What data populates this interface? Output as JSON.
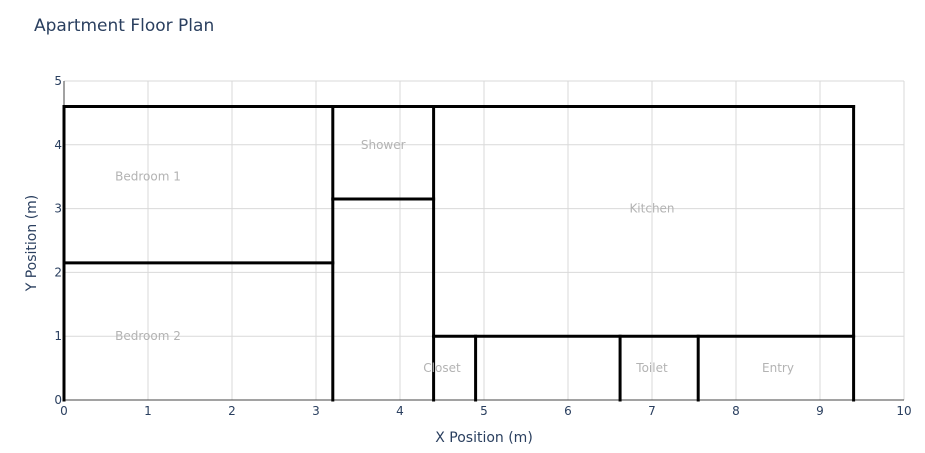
{
  "chart_data": {
    "type": "diagram",
    "title": "Apartment Floor Plan",
    "xlabel": "X Position (m)",
    "ylabel": "Y Position (m)",
    "xlim": [
      0,
      10
    ],
    "ylim": [
      0,
      5
    ],
    "xticks": [
      "0",
      "1",
      "2",
      "3",
      "4",
      "5",
      "6",
      "7",
      "8",
      "9",
      "10"
    ],
    "yticks": [
      "0",
      "1",
      "2",
      "3",
      "4",
      "5"
    ],
    "grid": true,
    "colors": {
      "wall": "#000000",
      "grid": "#d9d9d9",
      "label": "#b3b3b3",
      "text": "#2a3f5f"
    },
    "walls": [
      {
        "x0": 0,
        "y0": 4.6,
        "x1": 9.4,
        "y1": 4.6
      },
      {
        "x0": 0,
        "y0": 0,
        "x1": 0,
        "y1": 4.6
      },
      {
        "x0": 9.4,
        "y0": 0,
        "x1": 9.4,
        "y1": 4.6
      },
      {
        "x0": 0,
        "y0": 2.15,
        "x1": 3.2,
        "y1": 2.15
      },
      {
        "x0": 3.2,
        "y0": 0,
        "x1": 3.2,
        "y1": 4.6
      },
      {
        "x0": 3.2,
        "y0": 3.15,
        "x1": 4.4,
        "y1": 3.15
      },
      {
        "x0": 4.4,
        "y0": 0,
        "x1": 4.4,
        "y1": 4.6
      },
      {
        "x0": 4.4,
        "y0": 1.0,
        "x1": 9.4,
        "y1": 1.0
      },
      {
        "x0": 4.9,
        "y0": 0,
        "x1": 4.9,
        "y1": 1.0
      },
      {
        "x0": 6.62,
        "y0": 0,
        "x1": 6.62,
        "y1": 1.0
      },
      {
        "x0": 7.55,
        "y0": 0,
        "x1": 7.55,
        "y1": 1.0
      }
    ],
    "rooms": [
      {
        "label": "Bedroom 1",
        "x": 1.0,
        "y": 3.5
      },
      {
        "label": "Bedroom 2",
        "x": 1.0,
        "y": 1.0
      },
      {
        "label": "Shower",
        "x": 3.8,
        "y": 4.0
      },
      {
        "label": "Kitchen",
        "x": 7.0,
        "y": 3.0
      },
      {
        "label": "Closet",
        "x": 4.5,
        "y": 0.5
      },
      {
        "label": "Toilet",
        "x": 7.0,
        "y": 0.5
      },
      {
        "label": "Entry",
        "x": 8.5,
        "y": 0.5
      }
    ]
  }
}
